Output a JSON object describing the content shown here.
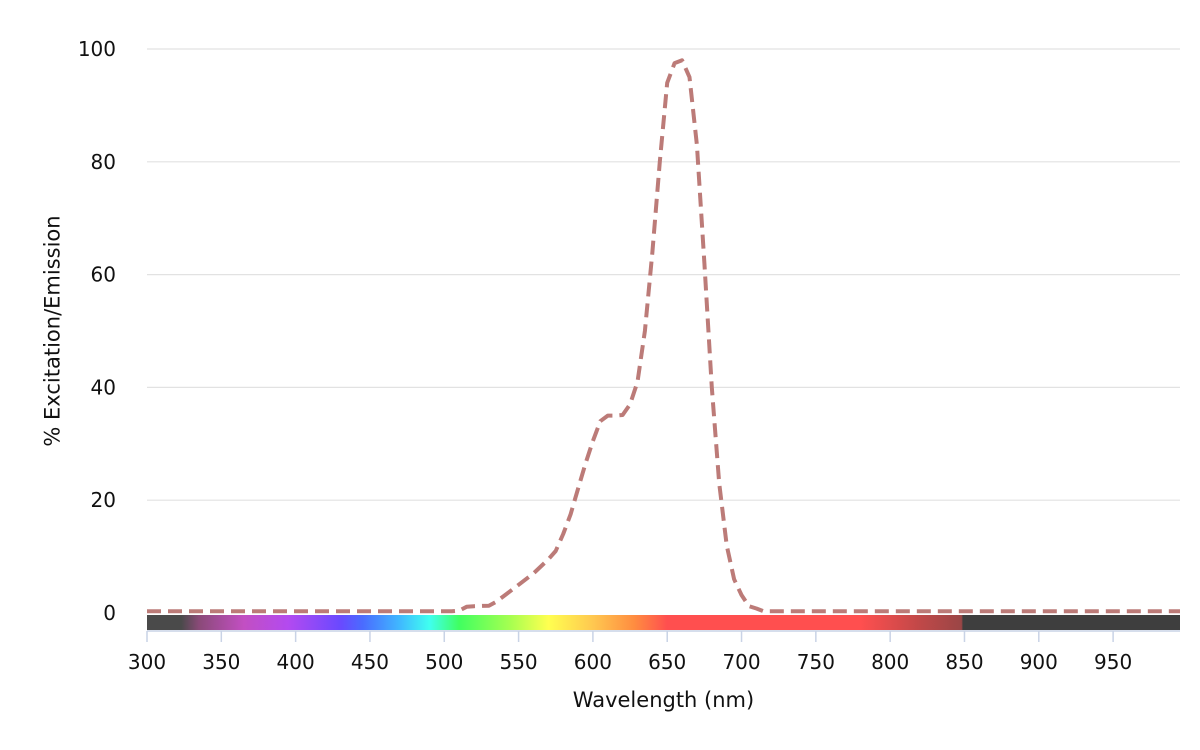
{
  "chart_data": {
    "type": "line",
    "title": "",
    "xlabel": "Wavelength (nm)",
    "ylabel": "% Excitation/Emission",
    "xlim": [
      300,
      995
    ],
    "ylim": [
      0,
      100
    ],
    "x_ticks": [
      300,
      350,
      400,
      450,
      500,
      550,
      600,
      650,
      700,
      750,
      800,
      850,
      900,
      950
    ],
    "y_ticks": [
      0,
      20,
      40,
      60,
      80,
      100
    ],
    "grid": "horizontal",
    "legend": "none",
    "spectrum_bar": {
      "colors": [
        {
          "nm": 300,
          "color": "#4a4a4a"
        },
        {
          "nm": 323,
          "color": "#4a4a4a"
        },
        {
          "nm": 335,
          "color": "#8a4a78"
        },
        {
          "nm": 365,
          "color": "#c24fc2"
        },
        {
          "nm": 395,
          "color": "#b34af0"
        },
        {
          "nm": 430,
          "color": "#6a49ff"
        },
        {
          "nm": 445,
          "color": "#4a6bff"
        },
        {
          "nm": 470,
          "color": "#40b8ff"
        },
        {
          "nm": 490,
          "color": "#40fff0"
        },
        {
          "nm": 510,
          "color": "#40ff60"
        },
        {
          "nm": 545,
          "color": "#a8ff50"
        },
        {
          "nm": 570,
          "color": "#ffff50"
        },
        {
          "nm": 600,
          "color": "#ffc850"
        },
        {
          "nm": 628,
          "color": "#ff8c40"
        },
        {
          "nm": 650,
          "color": "#ff4f4f"
        },
        {
          "nm": 780,
          "color": "#ff4f4f"
        },
        {
          "nm": 820,
          "color": "#c04848"
        },
        {
          "nm": 848,
          "color": "#9a4646"
        },
        {
          "nm": 849,
          "color": "#3e3e3e"
        },
        {
          "nm": 995,
          "color": "#3e3e3e"
        }
      ]
    },
    "series": [
      {
        "style": "dashed",
        "color": "#bc7b78",
        "x": [
          300,
          505,
          510,
          515,
          520,
          530,
          535,
          540,
          550,
          560,
          570,
          575,
          580,
          585,
          590,
          595,
          600,
          605,
          610,
          615,
          620,
          625,
          630,
          635,
          640,
          645,
          650,
          655,
          660,
          665,
          670,
          675,
          680,
          685,
          690,
          695,
          700,
          705,
          710,
          715,
          720,
          725,
          995
        ],
        "values": [
          0.3,
          0.3,
          0.4,
          1.1,
          1.2,
          1.3,
          2.0,
          3.0,
          5.0,
          7.0,
          9.5,
          11.0,
          14.0,
          17.5,
          22.0,
          26.5,
          30.5,
          34.0,
          35.0,
          35.0,
          35.1,
          37.0,
          41.0,
          50.0,
          64.0,
          80.0,
          94.0,
          97.5,
          98.0,
          95.0,
          83.0,
          62.0,
          40.0,
          23.0,
          12.0,
          6.0,
          3.2,
          1.2,
          0.8,
          0.3,
          0.3,
          0.3,
          0.3
        ]
      }
    ]
  }
}
